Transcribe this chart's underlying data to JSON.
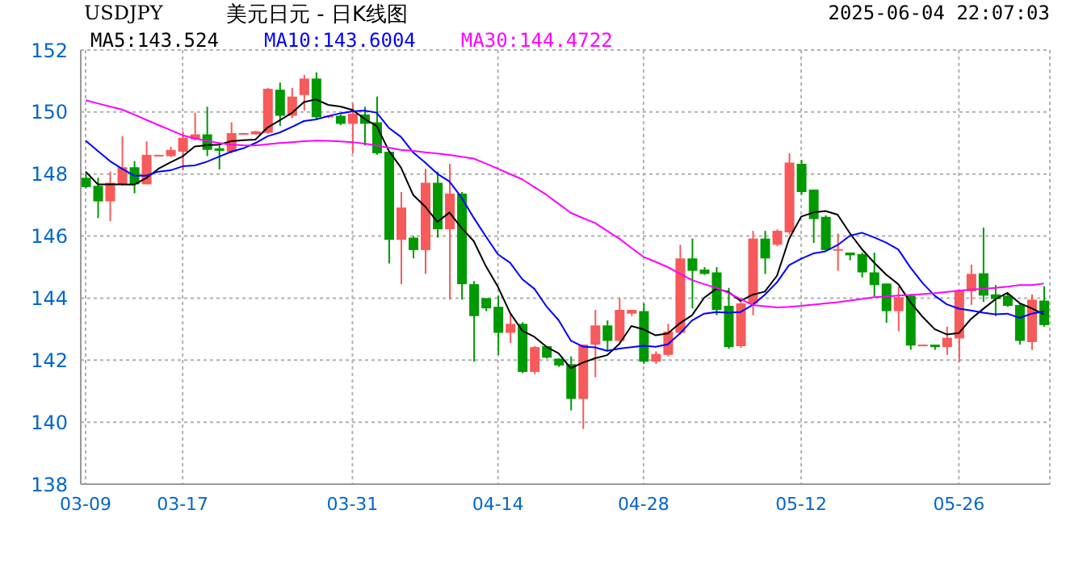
{
  "chart_data": {
    "type": "candlestick",
    "title": "美元日元 - 日K线图",
    "subtitle": "USDJPY",
    "annotations": [
      "2025-06-04 22:07:03"
    ],
    "categories": [
      "03-09",
      null,
      null,
      null,
      null,
      null,
      null,
      null,
      "03-17",
      null,
      null,
      null,
      null,
      null,
      null,
      null,
      null,
      null,
      null,
      null,
      null,
      null,
      "03-31",
      null,
      null,
      null,
      null,
      null,
      null,
      null,
      null,
      null,
      null,
      null,
      "04-14",
      null,
      null,
      null,
      null,
      null,
      null,
      null,
      null,
      null,
      null,
      null,
      "04-28",
      null,
      null,
      null,
      null,
      null,
      null,
      null,
      null,
      null,
      null,
      null,
      null,
      "05-12",
      null,
      null,
      null,
      null,
      null,
      null,
      null,
      null,
      null,
      null,
      null,
      null,
      "05-26",
      null,
      null,
      null,
      null,
      null,
      null,
      null
    ],
    "ohlc": [
      [
        147.88,
        148,
        147.55,
        147.58
      ],
      [
        147.62,
        147.88,
        146.58,
        147.12
      ],
      [
        147.12,
        148.08,
        146.48,
        147.72
      ],
      [
        147.67,
        149.22,
        147.62,
        148.22
      ],
      [
        148.22,
        148.42,
        147.38,
        147.67
      ],
      [
        147.67,
        149.05,
        147.67,
        148.62
      ],
      [
        148.58,
        148.62,
        148.58,
        148.62
      ],
      [
        148.58,
        148.88,
        148.55,
        148.78
      ],
      [
        148.72,
        149.38,
        148.12,
        149.17
      ],
      [
        149.12,
        149.98,
        149.08,
        149.28
      ],
      [
        149.28,
        150.17,
        148.58,
        148.78
      ],
      [
        148.83,
        148.92,
        148.15,
        148.75
      ],
      [
        148.72,
        149.67,
        148.67,
        149.32
      ],
      [
        149.3,
        149.33,
        149.28,
        149.32
      ],
      [
        149.28,
        149.4,
        149.27,
        149.38
      ],
      [
        149.33,
        150.78,
        149.3,
        150.75
      ],
      [
        150.72,
        150.95,
        149.55,
        149.88
      ],
      [
        149.88,
        150.78,
        149.8,
        150.5
      ],
      [
        150.55,
        151.2,
        150.05,
        151.08
      ],
      [
        151.08,
        151.28,
        149.78,
        149.83
      ],
      [
        149.83,
        149.9,
        149.8,
        149.88
      ],
      [
        149.88,
        149.92,
        149.58,
        149.62
      ],
      [
        149.62,
        150.28,
        148.67,
        149.95
      ],
      [
        149.92,
        150.17,
        148.92,
        149.62
      ],
      [
        149.67,
        150.5,
        148.62,
        148.67
      ],
      [
        148.72,
        148.75,
        145.12,
        145.88
      ],
      [
        145.88,
        147.42,
        144.45,
        146.92
      ],
      [
        145.95,
        146,
        145.28,
        145.55
      ],
      [
        145.55,
        148.17,
        144.78,
        147.72
      ],
      [
        147.72,
        148.08,
        145.95,
        146.22
      ],
      [
        146.22,
        148.33,
        143.95,
        147.37
      ],
      [
        147.37,
        147.42,
        143.95,
        144.45
      ],
      [
        144.45,
        144.55,
        141.95,
        143.42
      ],
      [
        144,
        144,
        143.58,
        143.67
      ],
      [
        143.72,
        144.08,
        142.17,
        142.88
      ],
      [
        142.88,
        143.5,
        142.55,
        143.17
      ],
      [
        143.17,
        143.22,
        141.58,
        141.62
      ],
      [
        141.62,
        142.45,
        141.55,
        142.42
      ],
      [
        142.45,
        142.45,
        142.05,
        142.08
      ],
      [
        142.05,
        142.05,
        141.78,
        141.83
      ],
      [
        141.87,
        142.12,
        140.38,
        140.75
      ],
      [
        140.75,
        142.5,
        139.78,
        142.5
      ],
      [
        142.5,
        143.62,
        141.45,
        143.12
      ],
      [
        143.12,
        143.28,
        142.28,
        142.62
      ],
      [
        142.62,
        144,
        142.58,
        143.62
      ],
      [
        143.5,
        143.62,
        143.42,
        143.62
      ],
      [
        143.58,
        143.83,
        141.88,
        141.95
      ],
      [
        141.95,
        142.28,
        141.88,
        142.2
      ],
      [
        142.17,
        143.17,
        142.12,
        142.92
      ],
      [
        142.88,
        145.72,
        142.83,
        145.28
      ],
      [
        145.28,
        145.92,
        143.67,
        144.88
      ],
      [
        144.92,
        145,
        144.75,
        144.78
      ],
      [
        144.83,
        145,
        143.45,
        143.62
      ],
      [
        143.75,
        144.33,
        142.37,
        142.42
      ],
      [
        142.45,
        143.88,
        142.4,
        143.83
      ],
      [
        143.83,
        146.17,
        143.45,
        145.92
      ],
      [
        145.92,
        146.17,
        144.78,
        145.28
      ],
      [
        145.72,
        146.22,
        145.67,
        146.17
      ],
      [
        146.12,
        148.67,
        146.05,
        148.37
      ],
      [
        148.33,
        148.45,
        147.33,
        147.42
      ],
      [
        147.5,
        147.5,
        145.78,
        146.55
      ],
      [
        146.62,
        146.67,
        145.5,
        145.55
      ],
      [
        145.55,
        146.08,
        144.88,
        145.58
      ],
      [
        145.47,
        145.47,
        145.22,
        145.38
      ],
      [
        145.42,
        145.47,
        144.67,
        144.83
      ],
      [
        144.83,
        145.47,
        144.05,
        144.42
      ],
      [
        144.47,
        144.47,
        143.2,
        143.58
      ],
      [
        143.58,
        144.37,
        142.93,
        144.03
      ],
      [
        144.08,
        144.13,
        142.33,
        142.47
      ],
      [
        142.47,
        142.5,
        142.47,
        142.5
      ],
      [
        142.5,
        142.5,
        142.33,
        142.42
      ],
      [
        142.42,
        143.08,
        142.17,
        142.72
      ],
      [
        142.7,
        144.28,
        141.95,
        144.25
      ],
      [
        144.22,
        145.08,
        143.78,
        144.78
      ],
      [
        144.8,
        146.27,
        143.88,
        144.08
      ],
      [
        144.12,
        144.42,
        143.42,
        143.97
      ],
      [
        144.08,
        144.13,
        143.72,
        143.75
      ],
      [
        143.78,
        143.83,
        142.5,
        142.62
      ],
      [
        142.58,
        144.12,
        142.33,
        143.95
      ],
      [
        143.92,
        144.38,
        143.08,
        143.13
      ]
    ],
    "colors": [
      "#009900",
      "#009900",
      "#f65a5a",
      "#f65a5a",
      "#009900",
      "#f65a5a",
      "#f65a5a",
      "#f65a5a",
      "#f65a5a",
      "#f65a5a",
      "#009900",
      "#009900",
      "#f65a5a",
      "#f65a5a",
      "#f65a5a",
      "#f65a5a",
      "#009900",
      "#f65a5a",
      "#f65a5a",
      "#009900",
      "#f65a5a",
      "#009900",
      "#f65a5a",
      "#009900",
      "#009900",
      "#009900",
      "#f65a5a",
      "#009900",
      "#f65a5a",
      "#009900",
      "#f65a5a",
      "#009900",
      "#009900",
      "#009900",
      "#009900",
      "#f65a5a",
      "#009900",
      "#f65a5a",
      "#009900",
      "#009900",
      "#009900",
      "#f65a5a",
      "#f65a5a",
      "#009900",
      "#f65a5a",
      "#f65a5a",
      "#009900",
      "#f65a5a",
      "#f65a5a",
      "#f65a5a",
      "#009900",
      "#009900",
      "#009900",
      "#009900",
      "#f65a5a",
      "#f65a5a",
      "#009900",
      "#f65a5a",
      "#f65a5a",
      "#009900",
      "#009900",
      "#009900",
      "#f65a5a",
      "#009900",
      "#009900",
      "#009900",
      "#009900",
      "#f65a5a",
      "#009900",
      "#f65a5a",
      "#009900",
      "#f65a5a",
      "#f65a5a",
      "#f65a5a",
      "#009900",
      "#009900",
      "#009900",
      "#009900",
      "#f65a5a",
      "#009900"
    ],
    "series": [
      {
        "type": "line",
        "name": "MA5:143.524",
        "color": "#000000",
        "values": [
          148.08,
          147.67,
          147.67,
          147.67,
          147.66,
          147.87,
          148.17,
          148.38,
          148.57,
          148.89,
          148.93,
          148.95,
          149.06,
          149.09,
          149.11,
          149.5,
          149.73,
          149.97,
          150.32,
          150.41,
          150.23,
          150.18,
          150.07,
          149.78,
          149.55,
          148.75,
          148.21,
          147.33,
          146.95,
          146.46,
          146.76,
          146.26,
          145.84,
          145.03,
          144.36,
          143.52,
          142.95,
          142.75,
          142.43,
          142.22,
          141.74,
          141.92,
          142.06,
          142.16,
          142.52,
          143.1,
          142.99,
          142.8,
          142.86,
          143.19,
          143.45,
          144.01,
          144.3,
          144.2,
          143.91,
          144.11,
          144.21,
          144.72,
          145.91,
          146.63,
          146.76,
          146.81,
          146.69,
          146.1,
          145.58,
          145.15,
          144.76,
          144.45,
          143.87,
          143.4,
          143,
          142.83,
          142.87,
          143.33,
          143.65,
          143.96,
          144.17,
          143.84,
          143.67,
          143.48
        ]
      },
      {
        "type": "line",
        "name": "MA10:143.6004",
        "color": "#0000ff",
        "values": [
          149.08,
          148.75,
          148.42,
          148.17,
          147.95,
          147.95,
          148.08,
          148.12,
          148.25,
          148.28,
          148.4,
          148.56,
          148.72,
          148.83,
          149,
          149.22,
          149.34,
          149.52,
          149.71,
          149.76,
          149.87,
          149.96,
          150.02,
          150.05,
          149.98,
          149.49,
          149.2,
          148.7,
          148.37,
          148.01,
          147.76,
          147.24,
          146.59,
          145.99,
          145.41,
          145.14,
          144.61,
          144.3,
          143.73,
          143.29,
          142.63,
          142.44,
          142.41,
          142.3,
          142.37,
          142.42,
          142.46,
          142.43,
          142.51,
          142.86,
          143.28,
          143.5,
          143.55,
          143.53,
          143.55,
          143.78,
          144.11,
          144.51,
          145.06,
          145.27,
          145.44,
          145.51,
          145.71,
          146.01,
          146.11,
          145.96,
          145.79,
          145.57,
          144.99,
          144.49,
          144.08,
          143.8,
          143.66,
          143.6,
          143.53,
          143.48,
          143.5,
          143.36,
          143.5,
          143.57
        ]
      },
      {
        "type": "line",
        "name": "MA30:144.4722",
        "color": "#ff00ff",
        "values": [
          150.38,
          150.28,
          150.18,
          150.08,
          149.92,
          149.75,
          149.58,
          149.42,
          149.25,
          149.15,
          149.07,
          149,
          148.95,
          148.93,
          148.92,
          148.96,
          149,
          149.03,
          149.06,
          149.08,
          149.07,
          149.05,
          149.03,
          148.98,
          148.92,
          148.85,
          148.78,
          148.75,
          148.7,
          148.66,
          148.62,
          148.56,
          148.5,
          148.34,
          148.17,
          148,
          147.83,
          147.58,
          147.33,
          147.04,
          146.75,
          146.58,
          146.42,
          146.17,
          145.92,
          145.62,
          145.33,
          145.17,
          145,
          144.79,
          144.58,
          144.45,
          144.33,
          144.17,
          143.97,
          143.78,
          143.74,
          143.7,
          143.72,
          143.75,
          143.79,
          143.83,
          143.87,
          143.92,
          143.97,
          144.03,
          144.05,
          144.08,
          144.1,
          144.13,
          144.16,
          144.2,
          144.24,
          144.28,
          144.3,
          144.33,
          144.37,
          144.42,
          144.42,
          144.47
        ]
      }
    ],
    "ylim": [
      138,
      152
    ],
    "yticks": [
      138,
      140,
      142,
      144,
      146,
      148,
      150,
      152
    ],
    "grid": true,
    "legend": "top left"
  }
}
